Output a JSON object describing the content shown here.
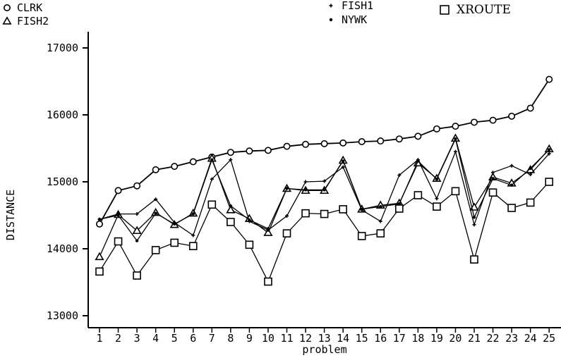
{
  "chart_data": {
    "type": "line",
    "title": "",
    "xlabel": "problem",
    "ylabel": "DISTANCE",
    "x": [
      1,
      2,
      3,
      4,
      5,
      6,
      7,
      8,
      9,
      10,
      11,
      12,
      13,
      14,
      15,
      16,
      17,
      18,
      19,
      20,
      21,
      22,
      23,
      24,
      25
    ],
    "ylim": [
      12900,
      17200
    ],
    "yticks": [
      13000,
      14000,
      15000,
      16000,
      17000
    ],
    "grid": false,
    "legend_position": "top",
    "series": [
      {
        "name": "CLRK",
        "marker": "circle",
        "values": [
          14370,
          14870,
          14940,
          15180,
          15230,
          15300,
          15370,
          15440,
          15460,
          15470,
          15530,
          15560,
          15570,
          15580,
          15600,
          15610,
          15640,
          15680,
          15790,
          15830,
          15890,
          15920,
          15980,
          16100,
          16530
        ]
      },
      {
        "name": "FISH2",
        "marker": "triangle",
        "values": [
          13880,
          14510,
          14270,
          14540,
          14360,
          14530,
          15350,
          14580,
          14450,
          14240,
          14900,
          14870,
          14870,
          15320,
          14590,
          14650,
          14680,
          15280,
          15050,
          15650,
          14620,
          15070,
          14980,
          15180,
          15490
        ]
      },
      {
        "name": "FISH1",
        "marker": "plus",
        "values": [
          14440,
          14520,
          14520,
          14740,
          14390,
          14200,
          15040,
          15330,
          14410,
          14280,
          14490,
          15000,
          15010,
          15220,
          14580,
          14410,
          15100,
          15330,
          14750,
          15450,
          14360,
          15140,
          15240,
          15110,
          15420
        ]
      },
      {
        "name": "NYWK",
        "marker": "dot",
        "values": [
          14440,
          14500,
          14120,
          14530,
          14370,
          14520,
          15330,
          14640,
          14430,
          14300,
          14900,
          14880,
          14880,
          15310,
          14590,
          14630,
          14670,
          15310,
          15040,
          15640,
          14470,
          15050,
          14950,
          15200,
          15480
        ]
      },
      {
        "name": "XROUTE",
        "marker": "square",
        "values": [
          13660,
          14110,
          13600,
          13980,
          14090,
          14040,
          14660,
          14400,
          14060,
          13510,
          14230,
          14530,
          14520,
          14590,
          14190,
          14230,
          14600,
          14800,
          14630,
          14860,
          13840,
          14840,
          14610,
          14690,
          15000
        ]
      }
    ]
  }
}
